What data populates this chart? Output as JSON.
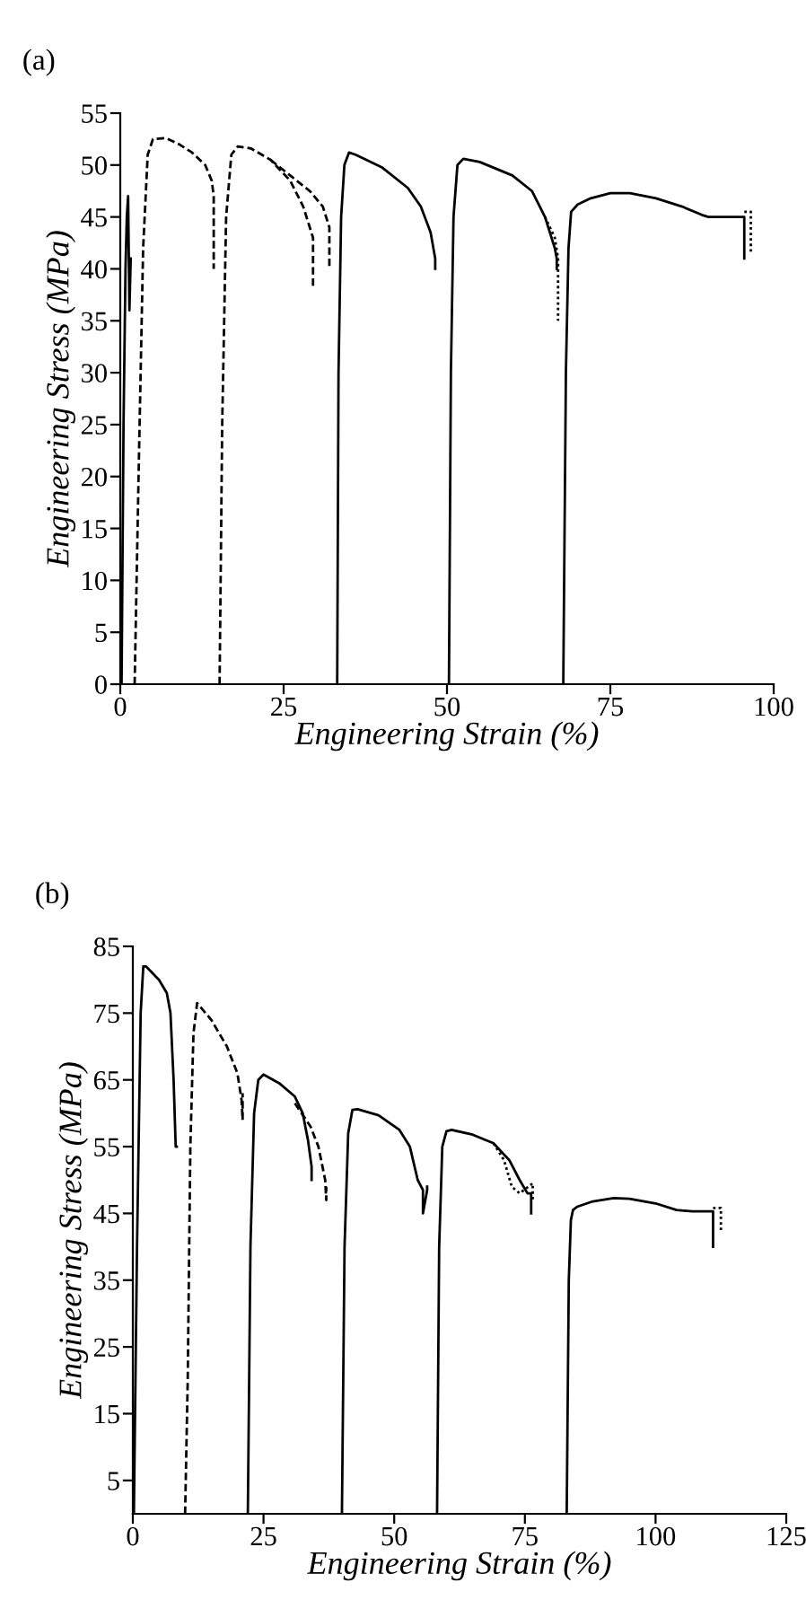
{
  "chart_data": [
    {
      "type": "line",
      "title": "(a)",
      "xlabel": "Engineering Strain (%)",
      "ylabel": "Engineering Stress (MPa)",
      "xlim": [
        0,
        100
      ],
      "xticks": [
        0,
        25,
        50,
        75,
        100
      ],
      "ylim": [
        0,
        55
      ],
      "yticks": [
        0,
        5,
        10,
        15,
        20,
        25,
        30,
        35,
        40,
        45,
        50,
        55
      ],
      "grid": false,
      "marker": "none",
      "series": [
        {
          "color": "#000000",
          "line_style": "solid",
          "x": [
            0.2,
            0.5,
            0.8,
            1.0,
            1.2,
            1.4,
            1.6
          ],
          "values": [
            0,
            25,
            40,
            45,
            47,
            36,
            41
          ]
        },
        {
          "color": "#000000",
          "line_style": "dashed",
          "x": [
            2.2,
            2.8,
            3.5,
            4.2,
            5,
            7,
            9,
            11,
            13,
            14,
            14.3,
            14.3
          ],
          "values": [
            0,
            20,
            42,
            51,
            52.5,
            52.6,
            52,
            51.2,
            50,
            48.5,
            47,
            40
          ]
        },
        {
          "color": "#000000",
          "line_style": "dashed",
          "x": [
            15.2,
            15.6,
            16.2,
            17,
            18,
            20,
            23,
            26,
            28,
            29.5,
            29.5
          ],
          "values": [
            0,
            25,
            45,
            51,
            51.8,
            51.6,
            50.5,
            48.5,
            46,
            43,
            38
          ]
        },
        {
          "color": "#000000",
          "line_style": "dashed",
          "x": [
            23,
            26,
            29,
            31,
            32,
            32
          ],
          "values": [
            50.5,
            49,
            47.5,
            46,
            44,
            40
          ]
        },
        {
          "color": "#000000",
          "line_style": "solid",
          "x": [
            33.2,
            33.4,
            33.8,
            34.3,
            35,
            36,
            40,
            44,
            46,
            47.5,
            48.2,
            48.2
          ],
          "values": [
            0,
            30,
            45,
            50,
            51.2,
            51,
            49.8,
            47.8,
            46,
            43.5,
            41,
            40
          ]
        },
        {
          "color": "#000000",
          "line_style": "solid",
          "x": [
            50.3,
            50.6,
            51,
            51.6,
            52.5,
            55,
            60,
            63,
            65,
            66.5,
            66.8,
            66.8
          ],
          "values": [
            0,
            30,
            45,
            50,
            50.6,
            50.3,
            49,
            47.5,
            45,
            42,
            41,
            40
          ]
        },
        {
          "color": "#000000",
          "line_style": "dotted",
          "x": [
            65,
            66.5,
            67,
            67
          ],
          "values": [
            45,
            43,
            41,
            35
          ]
        },
        {
          "color": "#000000",
          "line_style": "solid",
          "x": [
            67.8,
            68.2,
            68.6,
            69,
            70,
            72,
            75,
            78,
            82,
            86,
            89,
            90,
            95,
            95.5,
            95.5
          ],
          "values": [
            0,
            30,
            42,
            45.5,
            46.2,
            46.8,
            47.3,
            47.3,
            46.8,
            46,
            45.2,
            45,
            45,
            45,
            41
          ]
        },
        {
          "color": "#000000",
          "line_style": "dotted",
          "x": [
            95.5,
            96.5,
            96.5
          ],
          "values": [
            45.5,
            45.5,
            41.5
          ]
        }
      ]
    },
    {
      "type": "line",
      "title": "(b)",
      "xlabel": "Engineering Strain (%)",
      "ylabel": "Engineering Stress (MPa)",
      "xlim": [
        0,
        125
      ],
      "xticks": [
        0,
        25,
        50,
        75,
        100,
        125
      ],
      "ylim": [
        0,
        85
      ],
      "yticks": [
        5,
        15,
        25,
        35,
        45,
        55,
        65,
        75,
        85
      ],
      "grid": false,
      "marker": "none",
      "series": [
        {
          "color": "#000000",
          "line_style": "solid",
          "x": [
            0.2,
            0.8,
            1.5,
            2,
            2.5,
            5,
            6.5,
            7.2,
            7.8,
            8.2,
            8.4
          ],
          "values": [
            0,
            40,
            75,
            82,
            82,
            80,
            78,
            75,
            65,
            55,
            55
          ]
        },
        {
          "color": "#000000",
          "line_style": "dashed",
          "x": [
            10,
            10.5,
            11,
            11.6,
            12.3,
            15,
            18,
            20,
            20.8,
            21,
            21
          ],
          "values": [
            0,
            20,
            55,
            72,
            76.5,
            74,
            70,
            66,
            62,
            59,
            63
          ]
        },
        {
          "color": "#000000",
          "line_style": "solid",
          "x": [
            22,
            22.5,
            23.2,
            24,
            25,
            28,
            31,
            32.5,
            33.5,
            34.2,
            34.2
          ],
          "values": [
            0,
            40,
            60,
            65,
            65.8,
            64.5,
            62.5,
            60,
            56,
            52,
            50
          ]
        },
        {
          "color": "#000000",
          "line_style": "dashed",
          "x": [
            31,
            34,
            35.5,
            36.8,
            37,
            37
          ],
          "values": [
            61.5,
            58,
            55,
            50,
            47,
            49
          ]
        },
        {
          "color": "#000000",
          "line_style": "solid",
          "x": [
            40,
            40.5,
            41.2,
            42,
            43,
            47,
            51,
            53,
            54.5,
            55.5,
            55.5,
            56.3,
            56.3
          ],
          "values": [
            0,
            40,
            57,
            60.5,
            60.6,
            59.7,
            57.5,
            55,
            50,
            48.5,
            45,
            48.5,
            49
          ]
        },
        {
          "color": "#000000",
          "line_style": "solid",
          "x": [
            58.2,
            58.6,
            59.2,
            60,
            61,
            65,
            69,
            72,
            74,
            75.5,
            76.2,
            76.2
          ],
          "values": [
            0,
            40,
            55,
            57.3,
            57.5,
            56.8,
            55.5,
            53,
            50,
            48,
            48,
            45
          ]
        },
        {
          "color": "#000000",
          "line_style": "dotted",
          "x": [
            69,
            71,
            72.5,
            74,
            76.5,
            76.5
          ],
          "values": [
            55.5,
            53,
            49,
            48,
            49.5,
            47
          ]
        },
        {
          "color": "#000000",
          "line_style": "solid",
          "x": [
            83,
            83.4,
            83.8,
            84.2,
            85,
            88,
            92,
            95,
            100,
            104,
            107,
            111,
            111
          ],
          "values": [
            0,
            35,
            44,
            45.5,
            46,
            46.8,
            47.3,
            47.2,
            46.5,
            45.5,
            45.3,
            45.3,
            40
          ]
        },
        {
          "color": "#000000",
          "line_style": "dotted",
          "x": [
            111,
            112.5,
            112.5
          ],
          "values": [
            45.8,
            45.8,
            42.5
          ]
        }
      ]
    }
  ]
}
